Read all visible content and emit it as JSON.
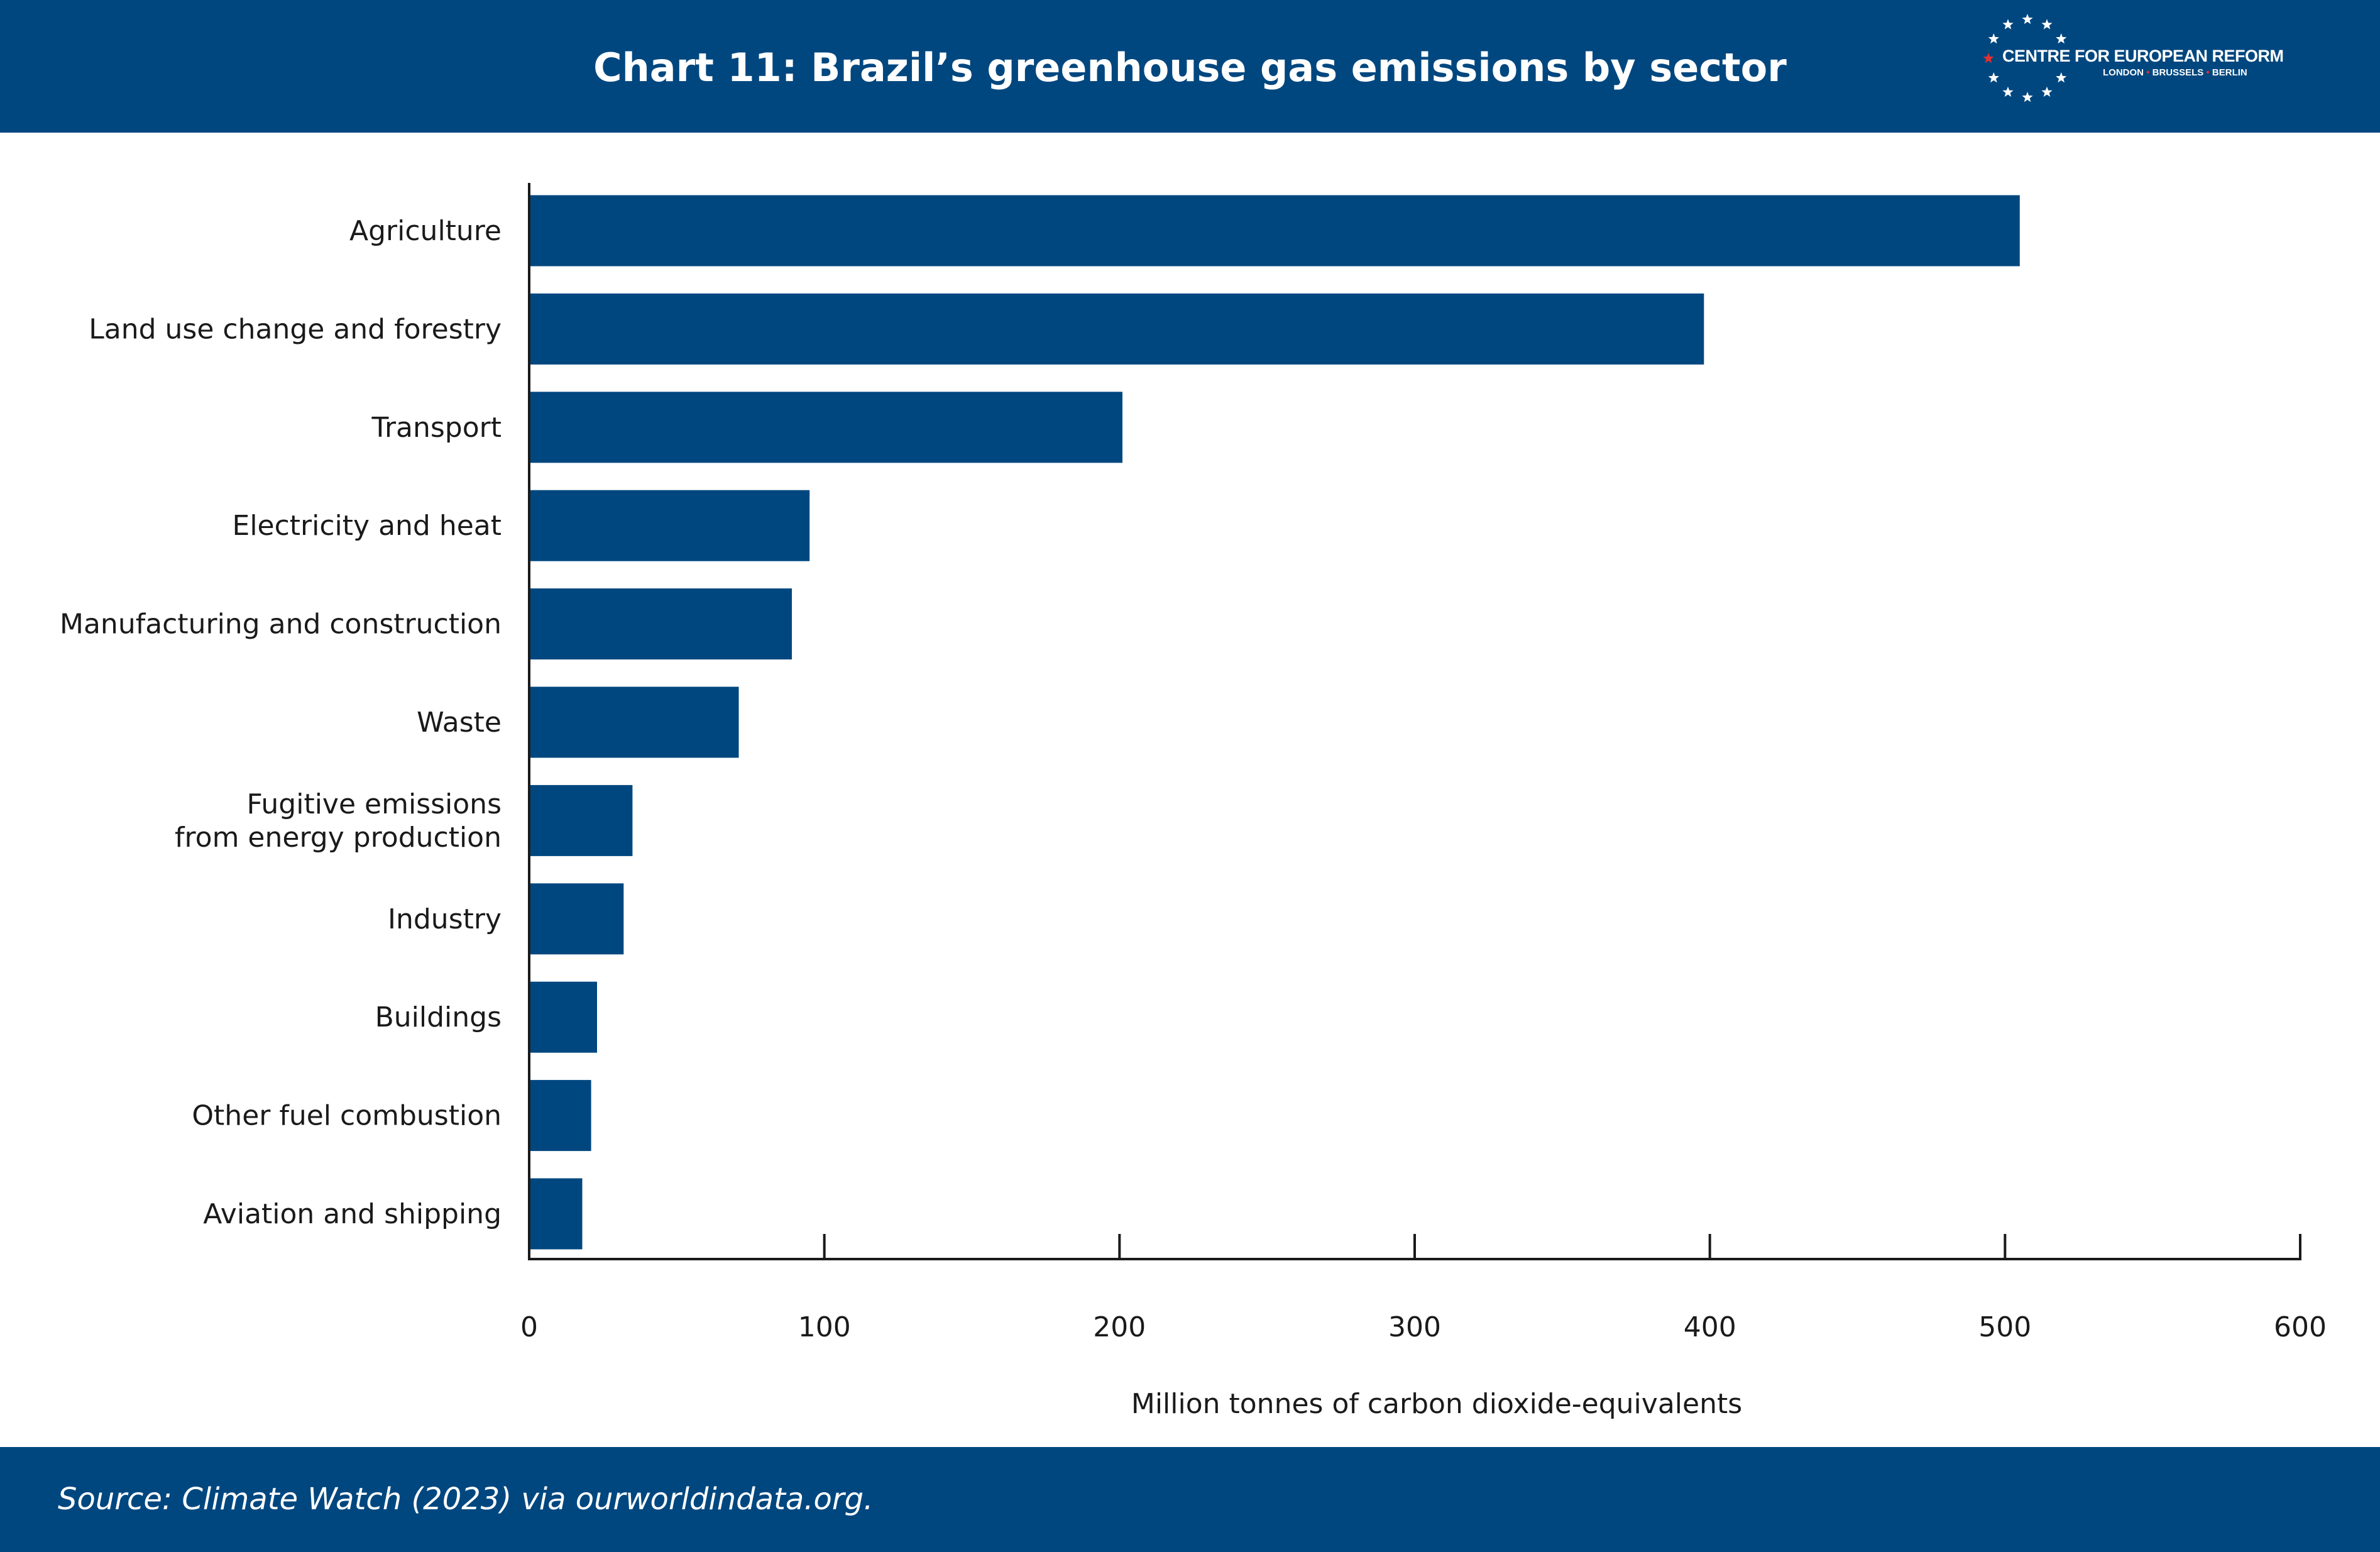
{
  "header": {
    "title": "Chart 11: Brazil’s greenhouse gas emissions by sector",
    "logo": {
      "name": "CENTRE FOR EUROPEAN REFORM",
      "cities": [
        "LONDON",
        "BRUSSELS",
        "BERLIN"
      ],
      "icon": "ring-of-stars-icon",
      "accent_color": "#e03131"
    }
  },
  "footer": {
    "source": "Source: Climate Watch (2023) via ourworldindata.org."
  },
  "colors": {
    "brand": "#00477f",
    "bar": "#00477f",
    "background": "#ffffff",
    "text": "#1a1a1a"
  },
  "chart_data": {
    "type": "bar",
    "orientation": "horizontal",
    "categories": [
      "Agriculture",
      "Land use change and forestry",
      "Transport",
      "Electricity and heat",
      "Manufacturing and construction",
      "Waste",
      "Fugitive emissions \nfrom energy production",
      "Industry",
      "Buildings",
      "Other fuel combustion",
      "Aviation and shipping"
    ],
    "values": [
      505,
      398,
      201,
      95,
      89,
      71,
      35,
      32,
      23,
      21,
      18
    ],
    "xlabel": "Million tonnes of carbon dioxide-equivalents",
    "xlim": [
      0,
      600
    ],
    "xticks": [
      0,
      100,
      200,
      300,
      400,
      500,
      600
    ],
    "grid": false,
    "legend": "none"
  }
}
